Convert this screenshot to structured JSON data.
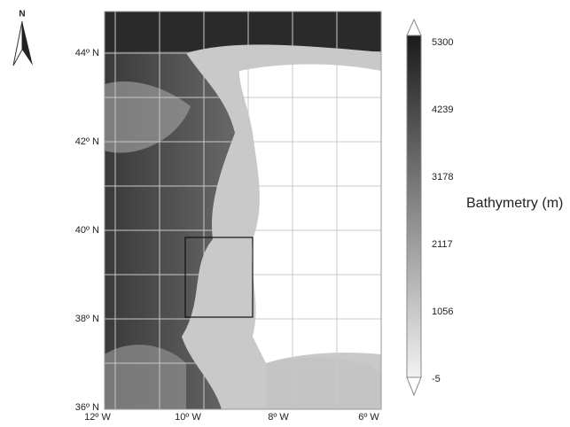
{
  "north_arrow": {
    "label": "N"
  },
  "map": {
    "lat_labels": [
      "44º N",
      "42º N",
      "40º N",
      "38º N",
      "36º N"
    ],
    "lon_labels": [
      "12º W",
      "10º W",
      "8º W",
      "6º W"
    ]
  },
  "colorbar": {
    "ticks": [
      "5300",
      "4239",
      "3178",
      "2117",
      "1056",
      "-5"
    ],
    "label": "Bathymetry (m)"
  }
}
